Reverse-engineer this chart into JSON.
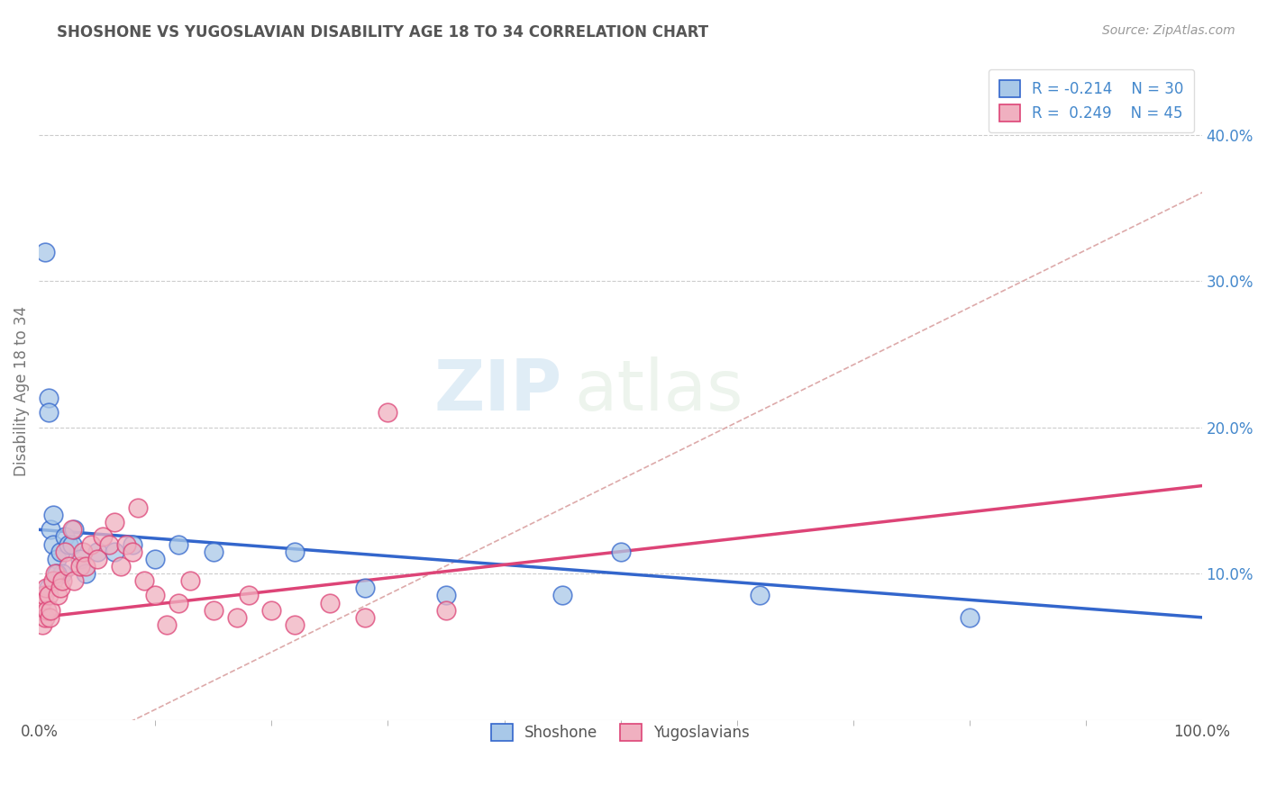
{
  "title": "SHOSHONE VS YUGOSLAVIAN DISABILITY AGE 18 TO 34 CORRELATION CHART",
  "source_text": "Source: ZipAtlas.com",
  "ylabel": "Disability Age 18 to 34",
  "watermark_zip": "ZIP",
  "watermark_atlas": "atlas",
  "legend_label1": "Shoshone",
  "legend_label2": "Yugoslavians",
  "r1": -0.214,
  "n1": 30,
  "r2": 0.249,
  "n2": 45,
  "color_shoshone": "#a8c8e8",
  "color_yugo": "#f0b0c0",
  "line_color_shoshone": "#3366cc",
  "line_color_yugo": "#dd4477",
  "shoshone_x": [
    0.005,
    0.008,
    0.008,
    0.01,
    0.012,
    0.015,
    0.018,
    0.02,
    0.022,
    0.025,
    0.028,
    0.03,
    0.035,
    0.04,
    0.05,
    0.065,
    0.08,
    0.1,
    0.12,
    0.15,
    0.22,
    0.28,
    0.35,
    0.45,
    0.5,
    0.62,
    0.8,
    0.012,
    0.008,
    0.015
  ],
  "shoshone_y": [
    0.32,
    0.22,
    0.21,
    0.13,
    0.12,
    0.11,
    0.115,
    0.1,
    0.125,
    0.12,
    0.12,
    0.13,
    0.11,
    0.1,
    0.115,
    0.115,
    0.12,
    0.11,
    0.12,
    0.115,
    0.115,
    0.09,
    0.085,
    0.085,
    0.115,
    0.085,
    0.07,
    0.14,
    0.09,
    0.1
  ],
  "yugo_x": [
    0.001,
    0.002,
    0.003,
    0.004,
    0.005,
    0.006,
    0.007,
    0.008,
    0.009,
    0.01,
    0.012,
    0.014,
    0.016,
    0.018,
    0.02,
    0.022,
    0.025,
    0.028,
    0.03,
    0.035,
    0.038,
    0.04,
    0.045,
    0.05,
    0.055,
    0.06,
    0.065,
    0.07,
    0.075,
    0.08,
    0.085,
    0.09,
    0.1,
    0.11,
    0.12,
    0.13,
    0.15,
    0.17,
    0.18,
    0.2,
    0.22,
    0.25,
    0.28,
    0.3,
    0.35
  ],
  "yugo_y": [
    0.075,
    0.08,
    0.065,
    0.085,
    0.07,
    0.09,
    0.075,
    0.085,
    0.07,
    0.075,
    0.095,
    0.1,
    0.085,
    0.09,
    0.095,
    0.115,
    0.105,
    0.13,
    0.095,
    0.105,
    0.115,
    0.105,
    0.12,
    0.11,
    0.125,
    0.12,
    0.135,
    0.105,
    0.12,
    0.115,
    0.145,
    0.095,
    0.085,
    0.065,
    0.08,
    0.095,
    0.075,
    0.07,
    0.085,
    0.075,
    0.065,
    0.08,
    0.07,
    0.21,
    0.075
  ],
  "xlim": [
    0.0,
    1.0
  ],
  "ylim": [
    0.0,
    0.45
  ],
  "yticks": [
    0.0,
    0.1,
    0.2,
    0.3,
    0.4
  ],
  "yticklabels_right": [
    "",
    "10.0%",
    "20.0%",
    "30.0%",
    "40.0%"
  ],
  "xticks": [
    0.0,
    1.0
  ],
  "xticklabels": [
    "0.0%",
    "100.0%"
  ],
  "background_color": "#ffffff",
  "grid_color": "#cccccc",
  "ref_line_color": "#ddaaaa",
  "right_tick_color": "#4488cc",
  "title_color": "#555555",
  "source_color": "#999999",
  "ylabel_color": "#777777"
}
